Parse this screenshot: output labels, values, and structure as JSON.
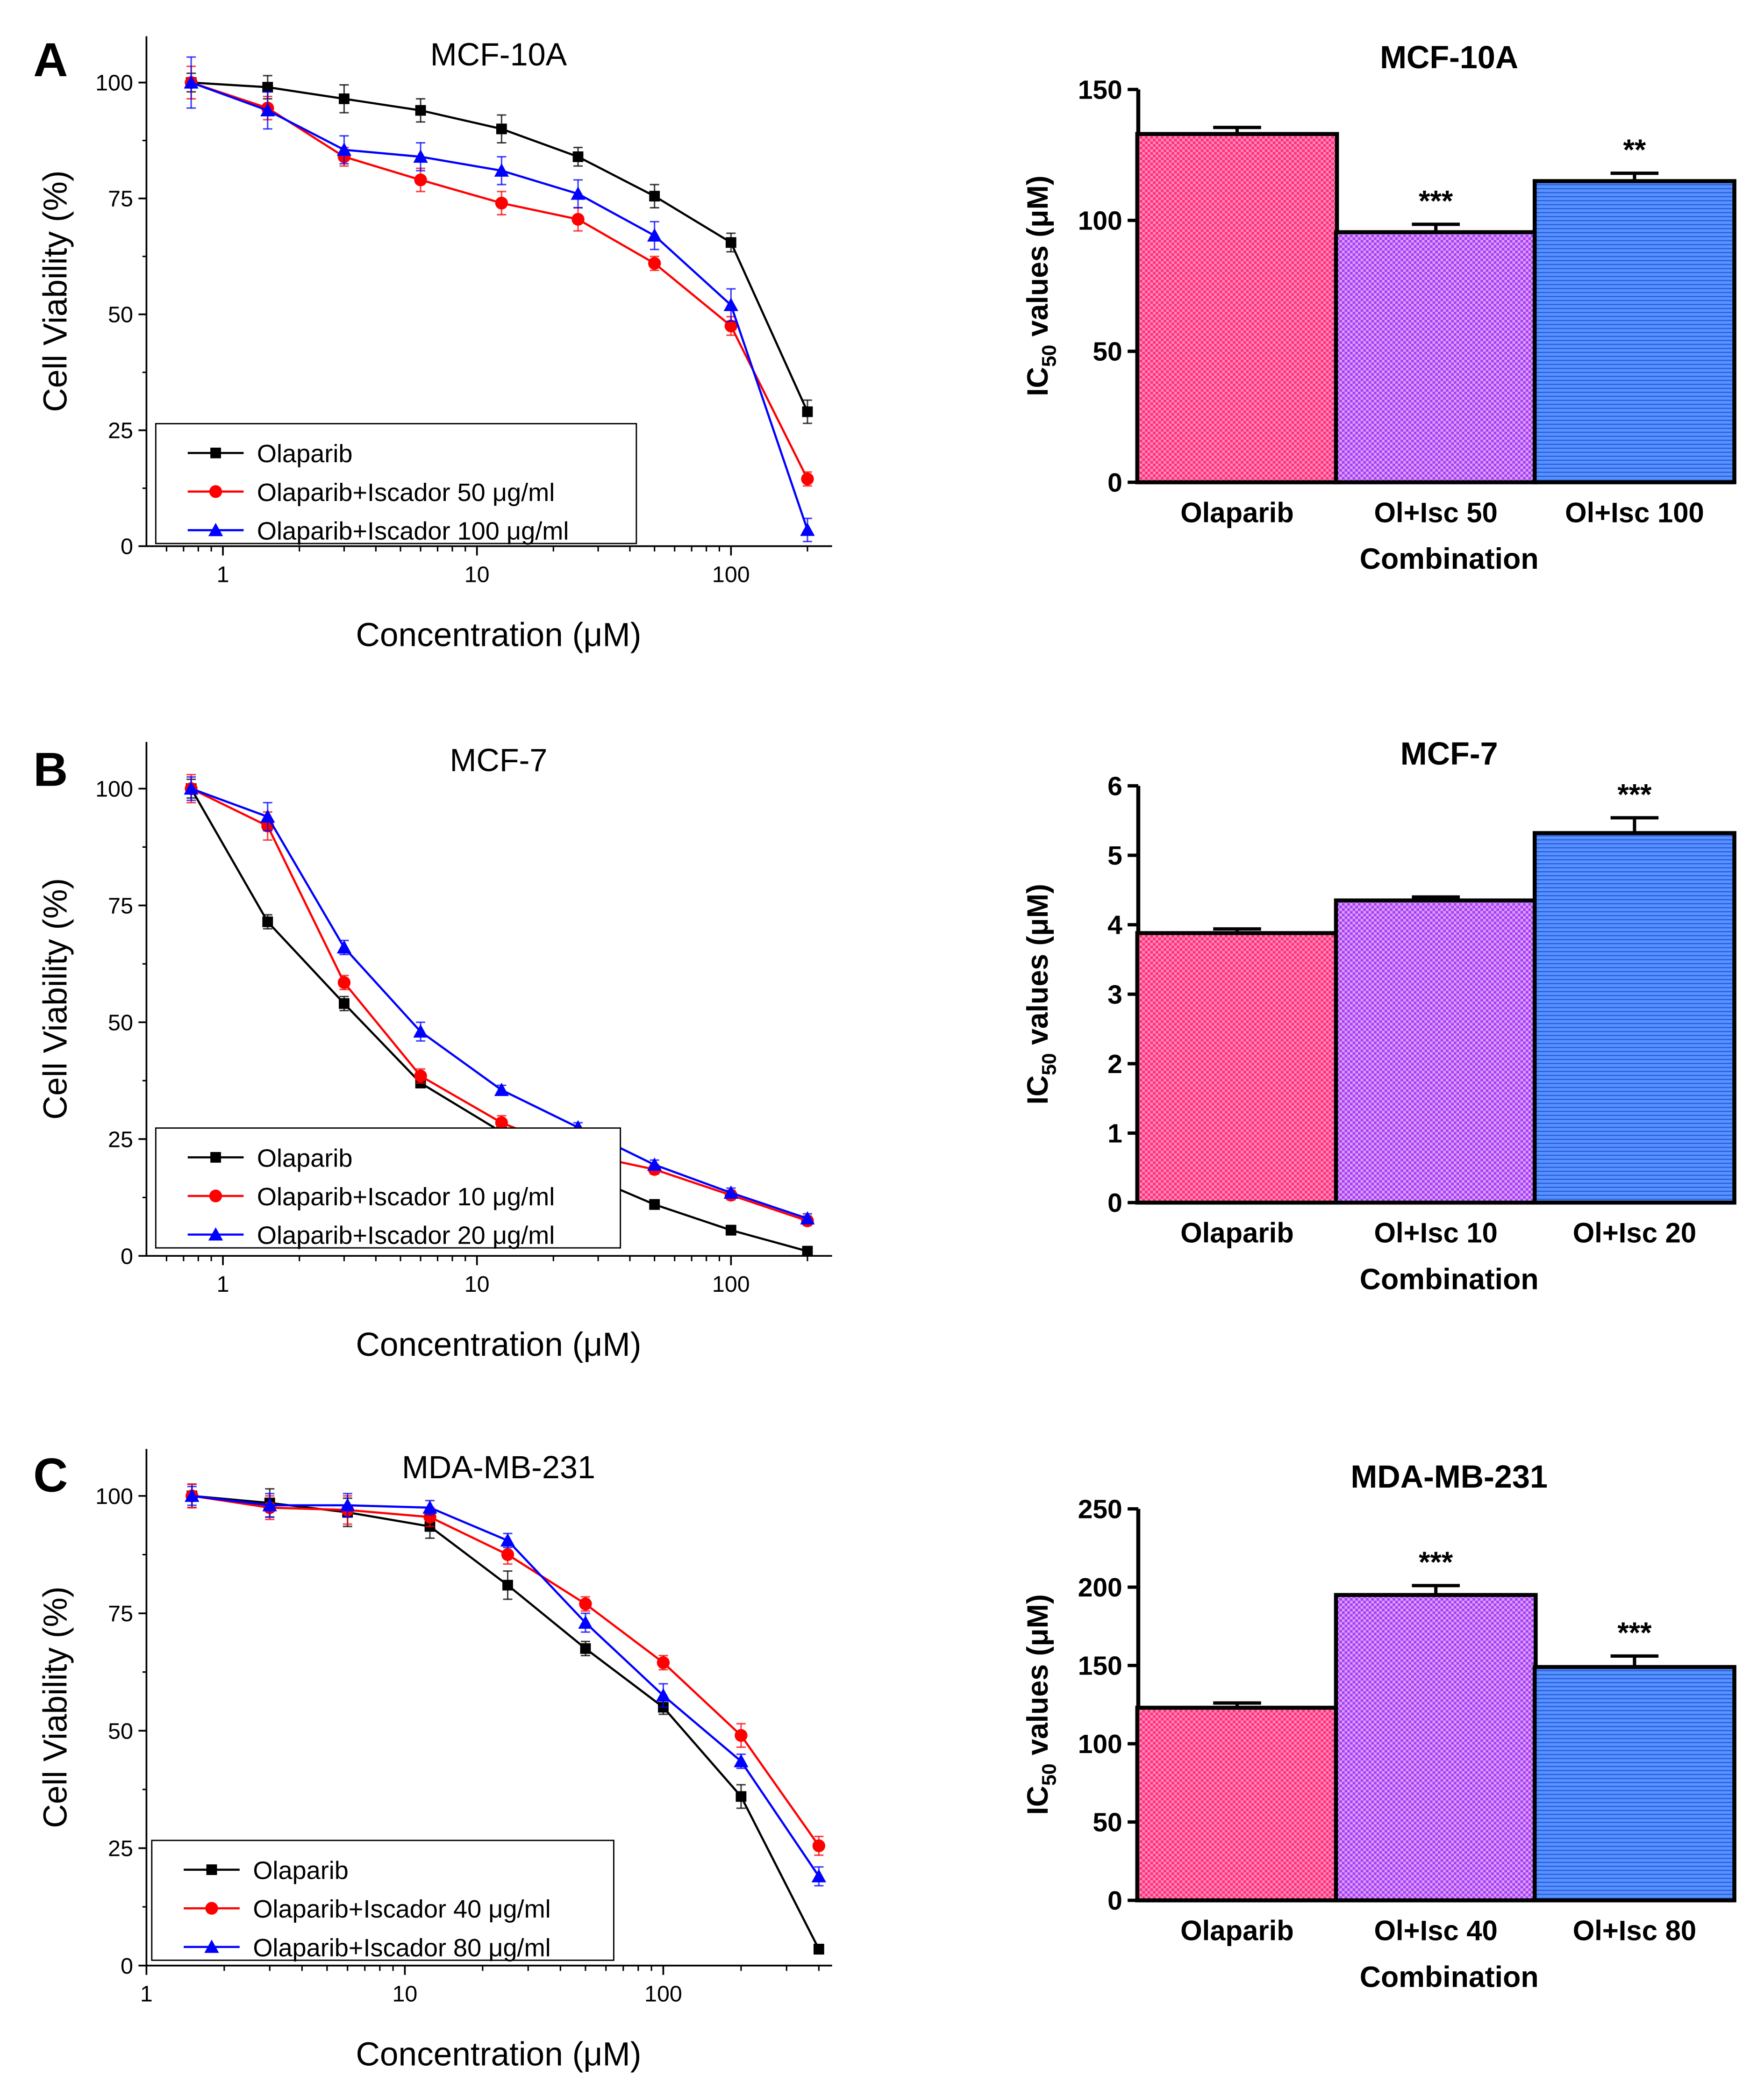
{
  "panel_letters": [
    "A",
    "B",
    "C"
  ],
  "colors": {
    "olaparib": "#000000",
    "combo1": "#ff0000",
    "combo2": "#0000ff",
    "bar_olaparib": "#ff2d7e",
    "bar_combo1": "#b040ff",
    "bar_combo2": "#5590ff"
  },
  "chart_data": [
    {
      "type": "line",
      "panel": "A",
      "title": "MCF-10A",
      "xlabel": "Concentration (μM)",
      "ylabel": "Cell Viability (%)",
      "xscale": "log",
      "xlim": [
        0.5,
        250
      ],
      "ylim": [
        0,
        110
      ],
      "xticks": [
        1,
        10,
        100
      ],
      "xtick_labels": [
        "1",
        "10",
        "100"
      ],
      "yticks": [
        0,
        25,
        50,
        75,
        100
      ],
      "ytick_labels": [
        "0",
        "25",
        "50",
        "75",
        "100"
      ],
      "legend_position": "bottom-left",
      "x": [
        0.75,
        1.5,
        3,
        6,
        12.5,
        25,
        50,
        100,
        200
      ],
      "series": [
        {
          "name": "Olaparib",
          "marker": "square",
          "color": "#000000",
          "values": [
            100,
            99,
            96.5,
            94,
            90,
            84,
            75.5,
            65.5,
            29
          ],
          "errors": [
            2,
            2.5,
            3,
            2.5,
            3,
            2,
            2.5,
            2,
            2.5
          ]
        },
        {
          "name": "Olaparib+Iscador 50 μg/ml",
          "marker": "circle",
          "color": "#ff0000",
          "values": [
            100,
            94.5,
            84,
            79,
            74,
            70.5,
            61,
            47.5,
            14.5
          ],
          "errors": [
            3.5,
            2.5,
            2,
            2.5,
            2.5,
            2.5,
            1.5,
            2,
            1.5
          ]
        },
        {
          "name": "Olaparib+Iscador 100 μg/ml",
          "marker": "triangle",
          "color": "#0000ff",
          "values": [
            100,
            94,
            85.5,
            84,
            81,
            76,
            67,
            52,
            3.5
          ],
          "errors": [
            5.5,
            4,
            3,
            3,
            3,
            3,
            3,
            3.5,
            2.5
          ]
        }
      ]
    },
    {
      "type": "bar",
      "panel": "A",
      "title": "MCF-10A",
      "xlabel": "Combination",
      "ylabel_main": "IC",
      "ylabel_sub": "50",
      "ylabel_rest": " values (μM)",
      "ylim": [
        0,
        150
      ],
      "yticks": [
        0,
        50,
        100,
        150
      ],
      "ytick_labels": [
        "0",
        "50",
        "100",
        "150"
      ],
      "categories": [
        "Olaparib",
        "Ol+Isc 50",
        "Ol+Isc 100"
      ],
      "values": [
        133,
        95.5,
        115
      ],
      "errors": [
        2.5,
        3,
        3
      ],
      "annotations": [
        "",
        "***",
        "**"
      ]
    },
    {
      "type": "line",
      "panel": "B",
      "title": "MCF-7",
      "xlabel": "Concentration (μM)",
      "ylabel": "Cell Viability (%)",
      "xscale": "log",
      "xlim": [
        0.5,
        250
      ],
      "ylim": [
        0,
        110
      ],
      "xticks": [
        1,
        10,
        100
      ],
      "xtick_labels": [
        "1",
        "10",
        "100"
      ],
      "yticks": [
        0,
        25,
        50,
        75,
        100
      ],
      "ytick_labels": [
        "0",
        "25",
        "50",
        "75",
        "100"
      ],
      "legend_position": "bottom-left",
      "x": [
        0.75,
        1.5,
        3,
        6,
        12.5,
        25,
        50,
        100,
        200
      ],
      "series": [
        {
          "name": "Olaparib",
          "marker": "square",
          "color": "#000000",
          "values": [
            100,
            71.5,
            54,
            37,
            26.5,
            18,
            11,
            5.5,
            1
          ],
          "errors": [
            2,
            1.5,
            1.5,
            1,
            1,
            1,
            1,
            1,
            1
          ]
        },
        {
          "name": "Olaparib+Iscador 10 μg/ml",
          "marker": "circle",
          "color": "#ff0000",
          "values": [
            100,
            92,
            58.5,
            38.5,
            28.5,
            22,
            18.5,
            13,
            7.5
          ],
          "errors": [
            3,
            3,
            1.5,
            1.5,
            1.5,
            1,
            1,
            1,
            1
          ]
        },
        {
          "name": "Olaparib+Iscador 20 μg/ml",
          "marker": "triangle",
          "color": "#0000ff",
          "values": [
            100,
            94,
            66,
            48,
            35.5,
            27.5,
            19.5,
            13.5,
            8
          ],
          "errors": [
            2.5,
            3,
            1.5,
            2,
            1,
            1,
            1,
            1,
            1
          ]
        }
      ]
    },
    {
      "type": "bar",
      "panel": "B",
      "title": "MCF-7",
      "xlabel": "Combination",
      "ylabel_main": "IC",
      "ylabel_sub": "50",
      "ylabel_rest": " values (μM)",
      "ylim": [
        0,
        6
      ],
      "yticks": [
        0,
        1,
        2,
        3,
        4,
        5,
        6
      ],
      "ytick_labels": [
        "0",
        "1",
        "2",
        "3",
        "4",
        "5",
        "6"
      ],
      "categories": [
        "Olaparib",
        "Ol+Isc 10",
        "Ol+Isc 20"
      ],
      "values": [
        3.88,
        4.35,
        5.32
      ],
      "errors": [
        0.06,
        0.05,
        0.22
      ],
      "annotations": [
        "",
        "",
        "***"
      ]
    },
    {
      "type": "line",
      "panel": "C",
      "title": "MDA-MB-231",
      "xlabel": "Concentration (μM)",
      "ylabel": "Cell Viability (%)",
      "xscale": "log",
      "xlim": [
        1,
        450
      ],
      "ylim": [
        0,
        110
      ],
      "xticks": [
        1,
        10,
        100
      ],
      "xtick_labels": [
        "1",
        "10",
        "100"
      ],
      "yticks": [
        0,
        25,
        50,
        75,
        100
      ],
      "ytick_labels": [
        "0",
        "25",
        "50",
        "75",
        "100"
      ],
      "legend_position": "bottom-left",
      "x": [
        1.5,
        3,
        6,
        12.5,
        25,
        50,
        100,
        200,
        400
      ],
      "series": [
        {
          "name": "Olaparib",
          "marker": "square",
          "color": "#000000",
          "values": [
            100,
            98.5,
            96.5,
            93.5,
            81,
            67.5,
            55,
            36,
            3.5
          ],
          "errors": [
            2.5,
            3,
            3,
            2.5,
            3,
            1.5,
            1.5,
            2.5,
            1
          ]
        },
        {
          "name": "Olaparib+Iscador 40 μg/ml",
          "marker": "circle",
          "color": "#ff0000",
          "values": [
            100,
            97.5,
            97,
            95.5,
            87.5,
            77,
            64.5,
            49,
            25.5
          ],
          "errors": [
            2.5,
            2.5,
            3,
            2,
            2,
            1.5,
            1.5,
            2.5,
            2
          ]
        },
        {
          "name": "Olaparib+Iscador 80 μg/ml",
          "marker": "triangle",
          "color": "#0000ff",
          "values": [
            100,
            98,
            98,
            97.5,
            90.5,
            73,
            57.5,
            43.5,
            19
          ],
          "errors": [
            2,
            2.5,
            2.5,
            1.5,
            1.5,
            2,
            2.5,
            1.5,
            2
          ]
        }
      ]
    },
    {
      "type": "bar",
      "panel": "C",
      "title": "MDA-MB-231",
      "xlabel": "Combination",
      "ylabel_main": "IC",
      "ylabel_sub": "50",
      "ylabel_rest": " values (μM)",
      "ylim": [
        0,
        250
      ],
      "yticks": [
        0,
        50,
        100,
        150,
        200,
        250
      ],
      "ytick_labels": [
        "0",
        "50",
        "100",
        "150",
        "200",
        "250"
      ],
      "categories": [
        "Olaparib",
        "Ol+Isc 40",
        "Ol+Isc 80"
      ],
      "values": [
        123,
        195,
        149
      ],
      "errors": [
        3,
        6,
        7
      ],
      "annotations": [
        "",
        "***",
        "***"
      ]
    }
  ]
}
